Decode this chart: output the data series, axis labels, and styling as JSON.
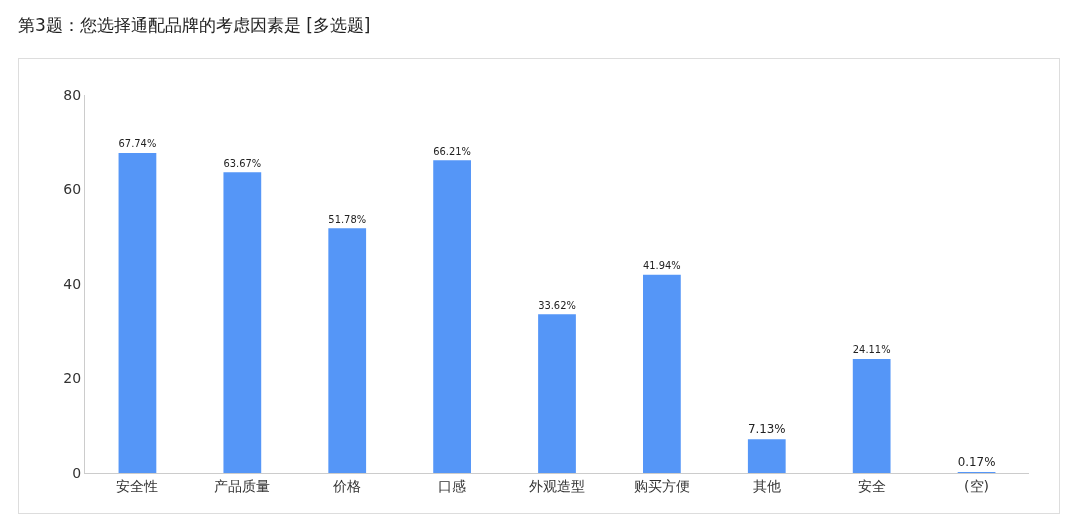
{
  "chart_data": {
    "type": "bar",
    "title": "第3题：您选择通配品牌的考虑因素是 [多选题]",
    "categories": [
      "安全性",
      "产品质量",
      "价格",
      "口感",
      "外观造型",
      "购买方便",
      "其他",
      "安全",
      "(空)"
    ],
    "values": [
      67.74,
      63.67,
      51.78,
      66.21,
      33.62,
      41.94,
      7.13,
      24.11,
      0.17
    ],
    "value_labels": [
      "67.74%",
      "63.67%",
      "51.78%",
      "66.21%",
      "33.62%",
      "41.94%",
      "7.13%",
      "24.11%",
      "0.17%"
    ],
    "color": "#5596f7",
    "ylim": [
      0,
      80
    ],
    "yticks": [
      0,
      20,
      40,
      60,
      80
    ],
    "grid": false,
    "legend": false
  }
}
